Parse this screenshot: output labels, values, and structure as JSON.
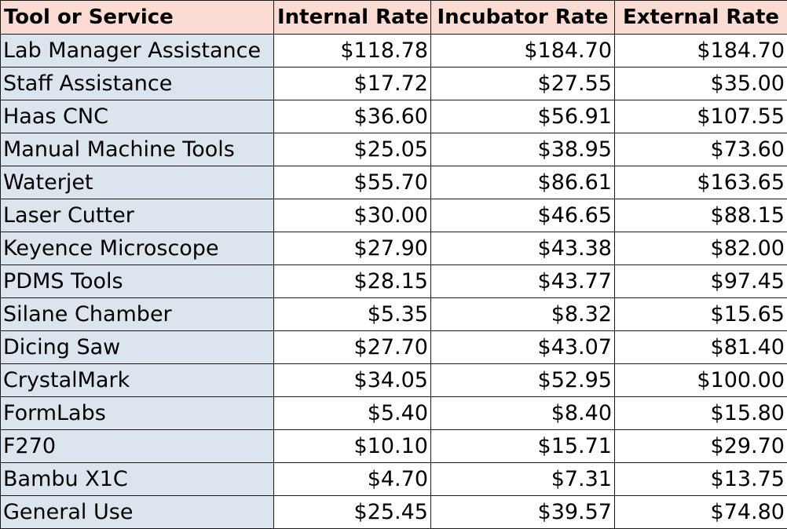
{
  "table": {
    "headers": [
      "Tool or Service",
      "Internal Rate",
      "Incubator Rate",
      "External Rate"
    ],
    "rows": [
      {
        "name": "Lab Manager Assistance",
        "internal": "$118.78",
        "incubator": "$184.70",
        "external": "$184.70"
      },
      {
        "name": "Staff Assistance",
        "internal": "$17.72",
        "incubator": "$27.55",
        "external": "$35.00"
      },
      {
        "name": "Haas CNC",
        "internal": "$36.60",
        "incubator": "$56.91",
        "external": "$107.55"
      },
      {
        "name": "Manual Machine Tools",
        "internal": "$25.05",
        "incubator": "$38.95",
        "external": "$73.60"
      },
      {
        "name": "Waterjet",
        "internal": "$55.70",
        "incubator": "$86.61",
        "external": "$163.65"
      },
      {
        "name": "Laser Cutter",
        "internal": "$30.00",
        "incubator": "$46.65",
        "external": "$88.15"
      },
      {
        "name": "Keyence Microscope",
        "internal": "$27.90",
        "incubator": "$43.38",
        "external": "$82.00"
      },
      {
        "name": "PDMS Tools",
        "internal": "$28.15",
        "incubator": "$43.77",
        "external": "$97.45"
      },
      {
        "name": "Silane Chamber",
        "internal": "$5.35",
        "incubator": "$8.32",
        "external": "$15.65"
      },
      {
        "name": "Dicing Saw",
        "internal": "$27.70",
        "incubator": "$43.07",
        "external": "$81.40"
      },
      {
        "name": "CrystalMark",
        "internal": "$34.05",
        "incubator": "$52.95",
        "external": "$100.00"
      },
      {
        "name": "FormLabs",
        "internal": "$5.40",
        "incubator": "$8.40",
        "external": "$15.80"
      },
      {
        "name": "F270",
        "internal": "$10.10",
        "incubator": "$15.71",
        "external": "$29.70"
      },
      {
        "name": "Bambu X1C",
        "internal": "$4.70",
        "incubator": "$7.31",
        "external": "$13.75"
      },
      {
        "name": "General Use",
        "internal": "$25.45",
        "incubator": "$39.57",
        "external": "$74.80"
      }
    ]
  },
  "colors": {
    "header_bg": "#fbdcd2",
    "name_col_bg": "#dce4ee",
    "border": "#1a1a1a"
  }
}
